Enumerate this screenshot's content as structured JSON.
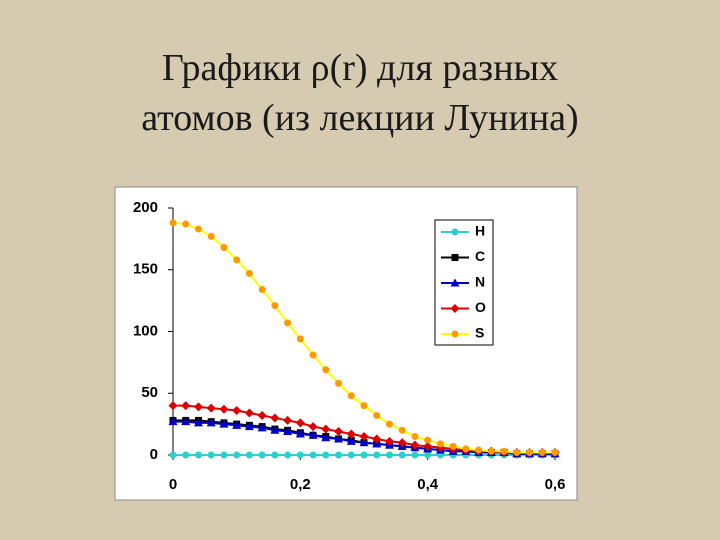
{
  "chart_data": {
    "type": "line",
    "title": [
      "Графики ρ(r) для разных",
      "атомов (из лекции Лунина)"
    ],
    "x": [
      0,
      0.02,
      0.04,
      0.06,
      0.08,
      0.1,
      0.12,
      0.14,
      0.16,
      0.18,
      0.2,
      0.22,
      0.24,
      0.26,
      0.28,
      0.3,
      0.32,
      0.34,
      0.36,
      0.38,
      0.4,
      0.42,
      0.44,
      0.46,
      0.48,
      0.5,
      0.52,
      0.54,
      0.56,
      0.58,
      0.6
    ],
    "series": [
      {
        "name": "H",
        "color": "#33cccc",
        "marker": "circle",
        "values": [
          0,
          0,
          0,
          0,
          0,
          0,
          0,
          0,
          0,
          0,
          0,
          0,
          0,
          0,
          0,
          0,
          0,
          0,
          0,
          0,
          0,
          0,
          0,
          0,
          0,
          0,
          0,
          0,
          0,
          0,
          0
        ]
      },
      {
        "name": "C",
        "color": "#000000",
        "marker": "square",
        "values": [
          28,
          28,
          28,
          27,
          26,
          25,
          24,
          23,
          21,
          20,
          18,
          16,
          15,
          13,
          12,
          10,
          9,
          8,
          7,
          6,
          5,
          4,
          3,
          3,
          2,
          2,
          2,
          1,
          1,
          1,
          1
        ]
      },
      {
        "name": "N",
        "color": "#0000cc",
        "marker": "triangle",
        "values": [
          27,
          27,
          26,
          26,
          25,
          24,
          23,
          22,
          20,
          19,
          17,
          16,
          14,
          13,
          11,
          10,
          9,
          8,
          7,
          6,
          5,
          4,
          3,
          3,
          2,
          2,
          2,
          1,
          1,
          1,
          1
        ]
      },
      {
        "name": "O",
        "color": "#dd0000",
        "marker": "diamond",
        "values": [
          40,
          40,
          39,
          38,
          37,
          36,
          34,
          32,
          30,
          28,
          26,
          23,
          21,
          19,
          17,
          15,
          13,
          11,
          10,
          8,
          7,
          6,
          5,
          4,
          3,
          3,
          2,
          2,
          2,
          2,
          2
        ]
      },
      {
        "name": "S",
        "color": "#ff9900",
        "line_color": "#ffff00",
        "marker": "circle",
        "values": [
          188,
          187,
          183,
          177,
          168,
          158,
          147,
          134,
          121,
          107,
          94,
          81,
          69,
          58,
          48,
          40,
          32,
          25,
          20,
          15,
          12,
          9,
          7,
          5,
          4,
          3,
          3,
          2,
          2,
          2,
          2
        ]
      }
    ],
    "xlim": [
      0,
      0.6
    ],
    "xticks": [
      0,
      {
        "value": 0.2,
        "label": "0,2"
      },
      {
        "value": 0.4,
        "label": "0,4"
      },
      {
        "value": 0.6,
        "label": "0,6"
      }
    ],
    "ylim": [
      0,
      200
    ],
    "yticks": [
      0,
      50,
      100,
      150,
      200
    ],
    "legend": "top-right"
  }
}
